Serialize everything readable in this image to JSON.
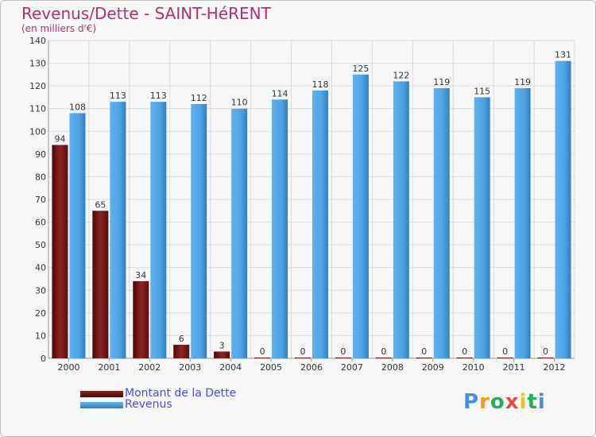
{
  "title": "Revenus/Dette - SAINT-HéRENT",
  "subtitle": "(en milliers d'€)",
  "colors": {
    "title": "#b0306f",
    "debt": "#7a1a1a",
    "revenue": "#4ea3e3",
    "legend_text": "#4a4ae0"
  },
  "legend": {
    "debt_label": "Montant de la Dette",
    "revenue_label": "Revenus"
  },
  "logo": {
    "letters": [
      "P",
      "r",
      "o",
      "x",
      "i",
      "t",
      "i"
    ],
    "colors": [
      "#4a90d9",
      "#f39c12",
      "#27ae60",
      "#e74c3c",
      "#f1c40f",
      "#27ae60",
      "#4a90d9"
    ]
  },
  "chart_data": {
    "type": "bar",
    "categories": [
      "2000",
      "2001",
      "2002",
      "2003",
      "2004",
      "2005",
      "2006",
      "2007",
      "2008",
      "2009",
      "2010",
      "2011",
      "2012"
    ],
    "series": [
      {
        "name": "Montant de la Dette",
        "values": [
          94,
          65,
          34,
          6,
          3,
          0,
          0,
          0,
          0,
          0,
          0,
          0,
          0
        ]
      },
      {
        "name": "Revenus",
        "values": [
          108,
          113,
          113,
          112,
          110,
          114,
          118,
          125,
          122,
          119,
          115,
          119,
          131
        ]
      }
    ],
    "ylim": [
      0,
      140
    ],
    "yticks": [
      0,
      10,
      20,
      30,
      40,
      50,
      60,
      70,
      80,
      90,
      100,
      110,
      120,
      130,
      140
    ],
    "grid": true,
    "legend_position": "bottom-left"
  }
}
